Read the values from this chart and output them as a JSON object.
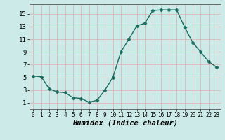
{
  "x": [
    0,
    1,
    2,
    3,
    4,
    5,
    6,
    7,
    8,
    9,
    10,
    11,
    12,
    13,
    14,
    15,
    16,
    17,
    18,
    19,
    20,
    21,
    22,
    23
  ],
  "y": [
    5.2,
    5.1,
    3.2,
    2.7,
    2.6,
    1.8,
    1.7,
    1.1,
    1.4,
    3.0,
    5.0,
    9.0,
    11.0,
    13.1,
    13.5,
    15.5,
    15.6,
    15.6,
    15.6,
    12.9,
    10.5,
    9.0,
    7.5,
    6.6
  ],
  "line_color": "#1a6b5e",
  "marker": "D",
  "marker_size": 2.5,
  "bg_color": "#cceae7",
  "grid_color": "#b0d8d4",
  "xlabel": "Humidex (Indice chaleur)",
  "xlim": [
    -0.5,
    23.5
  ],
  "ylim": [
    0,
    16.5
  ],
  "yticks": [
    1,
    3,
    5,
    7,
    9,
    11,
    13,
    15
  ],
  "xticks": [
    0,
    1,
    2,
    3,
    4,
    5,
    6,
    7,
    8,
    9,
    10,
    11,
    12,
    13,
    14,
    15,
    16,
    17,
    18,
    19,
    20,
    21,
    22,
    23
  ],
  "xtick_labels": [
    "0",
    "1",
    "2",
    "3",
    "4",
    "5",
    "6",
    "7",
    "8",
    "9",
    "10",
    "11",
    "12",
    "13",
    "14",
    "15",
    "16",
    "17",
    "18",
    "19",
    "20",
    "21",
    "22",
    "23"
  ]
}
